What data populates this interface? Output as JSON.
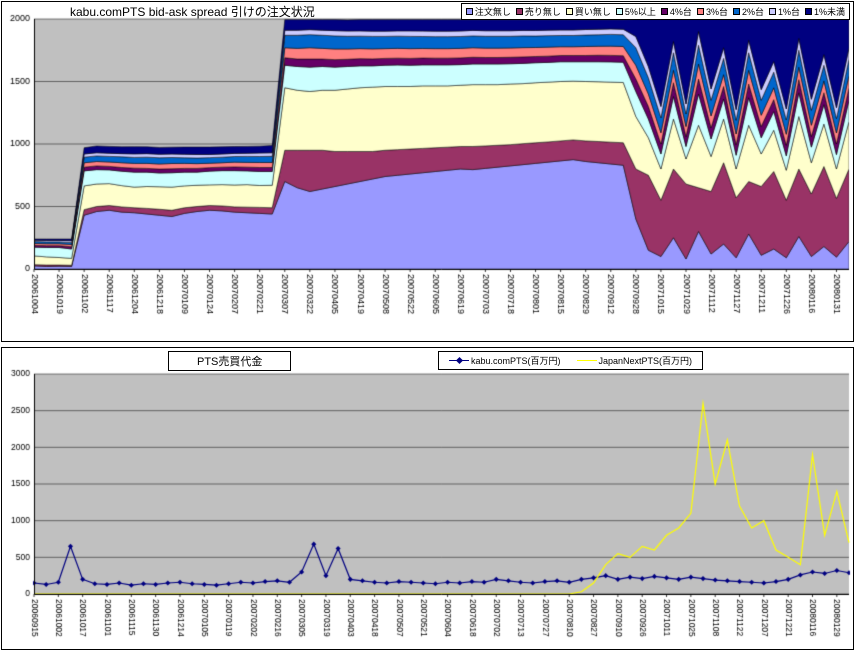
{
  "chart_data": [
    {
      "type": "area",
      "stacked": true,
      "title": "kabu.comPTS bid-ask spread 引けの注文状況",
      "ylim": [
        0,
        2000
      ],
      "yticks": [
        0,
        500,
        1000,
        1500,
        2000
      ],
      "plot_bg": "#C0C0C0",
      "grid": "horizontal",
      "legend_position": "top-right",
      "points_per_tick": 2,
      "x_tick_labels": [
        "20061004",
        "20061019",
        "20061102",
        "20061117",
        "20061204",
        "20061218",
        "20070109",
        "20070124",
        "20070207",
        "20070221",
        "20070307",
        "20070322",
        "20070405",
        "20070419",
        "20070508",
        "20070522",
        "20070605",
        "20070619",
        "20070703",
        "20070718",
        "20070801",
        "20070815",
        "20070829",
        "20070912",
        "20070928",
        "20071015",
        "20071029",
        "20071112",
        "20071127",
        "20071211",
        "20071226",
        "20080116",
        "20080131"
      ],
      "series": [
        {
          "name": "注文無し",
          "color": "#9999FF",
          "values": [
            25,
            20,
            22,
            20,
            430,
            460,
            470,
            455,
            450,
            440,
            430,
            420,
            445,
            460,
            470,
            465,
            455,
            450,
            445,
            440,
            700,
            650,
            620,
            640,
            660,
            680,
            700,
            720,
            740,
            750,
            760,
            770,
            780,
            790,
            800,
            795,
            805,
            815,
            825,
            835,
            845,
            855,
            865,
            875,
            860,
            850,
            840,
            830,
            400,
            150,
            100,
            250,
            80,
            300,
            120,
            200,
            90,
            280,
            110,
            160,
            90,
            260,
            100,
            180,
            95,
            220
          ]
        },
        {
          "name": "売り無し",
          "color": "#993366",
          "values": [
            10,
            12,
            10,
            10,
            45,
            40,
            38,
            42,
            40,
            45,
            48,
            50,
            45,
            40,
            38,
            40,
            42,
            45,
            48,
            50,
            250,
            300,
            330,
            310,
            280,
            260,
            240,
            220,
            210,
            205,
            200,
            195,
            190,
            185,
            180,
            185,
            180,
            175,
            170,
            168,
            165,
            162,
            160,
            158,
            165,
            170,
            175,
            180,
            400,
            600,
            450,
            550,
            600,
            350,
            500,
            650,
            480,
            420,
            550,
            620,
            460,
            540,
            500,
            640,
            470,
            580
          ]
        },
        {
          "name": "買い無し",
          "color": "#FFFFCC",
          "values": [
            70,
            65,
            60,
            55,
            190,
            180,
            175,
            170,
            165,
            175,
            180,
            185,
            175,
            170,
            165,
            170,
            175,
            180,
            175,
            180,
            500,
            480,
            470,
            480,
            490,
            500,
            510,
            515,
            510,
            505,
            500,
            500,
            495,
            490,
            490,
            495,
            490,
            485,
            485,
            480,
            480,
            478,
            475,
            470,
            475,
            478,
            480,
            482,
            420,
            300,
            250,
            400,
            200,
            500,
            280,
            350,
            230,
            450,
            260,
            330,
            240,
            420,
            250,
            340,
            235,
            380
          ]
        },
        {
          "name": "5%以上",
          "color": "#CCFFFF",
          "values": [
            70,
            75,
            80,
            75,
            120,
            115,
            110,
            115,
            120,
            115,
            110,
            115,
            110,
            105,
            110,
            112,
            115,
            110,
            112,
            110,
            180,
            190,
            195,
            190,
            185,
            180,
            175,
            170,
            170,
            172,
            170,
            168,
            168,
            168,
            165,
            165,
            165,
            165,
            162,
            162,
            160,
            158,
            158,
            155,
            158,
            160,
            162,
            162,
            200,
            150,
            120,
            180,
            100,
            250,
            140,
            160,
            110,
            220,
            130,
            150,
            115,
            190,
            125,
            155,
            115,
            170
          ]
        },
        {
          "name": "4%台",
          "color": "#660066",
          "values": [
            15,
            15,
            15,
            18,
            30,
            30,
            28,
            30,
            32,
            30,
            32,
            32,
            30,
            30,
            28,
            28,
            30,
            30,
            32,
            32,
            60,
            60,
            65,
            60,
            60,
            58,
            58,
            56,
            55,
            55,
            55,
            55,
            54,
            54,
            54,
            54,
            52,
            52,
            52,
            52,
            50,
            50,
            50,
            50,
            50,
            52,
            52,
            52,
            100,
            100,
            80,
            110,
            80,
            120,
            90,
            100,
            85,
            110,
            90,
            95,
            85,
            105,
            85,
            95,
            85,
            100
          ]
        },
        {
          "name": "3%台",
          "color": "#FF8080",
          "values": [
            15,
            15,
            15,
            18,
            35,
            35,
            35,
            38,
            38,
            40,
            40,
            42,
            40,
            38,
            35,
            35,
            38,
            38,
            40,
            40,
            80,
            85,
            90,
            85,
            85,
            82,
            80,
            80,
            78,
            78,
            78,
            76,
            76,
            76,
            76,
            76,
            75,
            75,
            74,
            74,
            72,
            72,
            70,
            70,
            72,
            72,
            74,
            74,
            110,
            100,
            90,
            100,
            80,
            120,
            95,
            95,
            85,
            110,
            90,
            95,
            88,
            100,
            90,
            95,
            88,
            100
          ]
        },
        {
          "name": "2%台",
          "color": "#0066CC",
          "values": [
            15,
            15,
            15,
            15,
            45,
            45,
            45,
            48,
            48,
            50,
            50,
            48,
            45,
            45,
            45,
            45,
            45,
            48,
            48,
            50,
            100,
            105,
            105,
            105,
            105,
            102,
            100,
            100,
            98,
            98,
            98,
            96,
            96,
            96,
            95,
            95,
            95,
            95,
            94,
            94,
            92,
            92,
            90,
            90,
            92,
            92,
            94,
            94,
            140,
            130,
            120,
            140,
            100,
            150,
            125,
            130,
            110,
            140,
            120,
            125,
            115,
            135,
            120,
            125,
            115,
            130
          ]
        },
        {
          "name": "1%台",
          "color": "#CCCCFF",
          "values": [
            10,
            12,
            12,
            15,
            25,
            25,
            25,
            25,
            28,
            28,
            28,
            28,
            28,
            28,
            25,
            25,
            25,
            25,
            28,
            28,
            40,
            40,
            40,
            40,
            42,
            42,
            42,
            42,
            42,
            42,
            44,
            44,
            44,
            44,
            44,
            44,
            44,
            44,
            44,
            44,
            44,
            44,
            44,
            44,
            44,
            44,
            44,
            44,
            90,
            90,
            90,
            90,
            80,
            110,
            90,
            85,
            85,
            100,
            85,
            85,
            87,
            95,
            88,
            85,
            87,
            90
          ]
        },
        {
          "name": "1%未満",
          "color": "#000080",
          "values": [
            10,
            11,
            11,
            14,
            50,
            55,
            55,
            55,
            58,
            55,
            55,
            55,
            58,
            60,
            60,
            58,
            55,
            55,
            55,
            58,
            85,
            85,
            80,
            85,
            88,
            88,
            90,
            92,
            92,
            90,
            90,
            91,
            92,
            92,
            91,
            86,
            89,
            89,
            89,
            86,
            87,
            84,
            83,
            83,
            79,
            77,
            74,
            77,
            140,
            380,
            700,
            180,
            680,
            100,
            560,
            230,
            725,
            170,
            565,
            340,
            720,
            155,
            642,
            285,
            710,
            230
          ]
        }
      ]
    },
    {
      "type": "line",
      "title": "PTS売買代金",
      "ylim": [
        0,
        3000
      ],
      "yticks": [
        0,
        500,
        1000,
        1500,
        2000,
        2500,
        3000
      ],
      "plot_bg": "#C0C0C0",
      "grid": "horizontal",
      "legend_position": "top-right",
      "points_per_tick": 2,
      "x_tick_labels": [
        "20060915",
        "20061002",
        "20061017",
        "20061101",
        "20061115",
        "20061130",
        "20061214",
        "20070105",
        "20070119",
        "20070202",
        "20070216",
        "20070305",
        "20070319",
        "20070403",
        "20070418",
        "20070507",
        "20070521",
        "20070604",
        "20070618",
        "20070702",
        "20070713",
        "20070727",
        "20070810",
        "20070827",
        "20070910",
        "20070926",
        "20071011",
        "20071025",
        "20071108",
        "20071122",
        "20071207",
        "20071221",
        "20080116",
        "20080129"
      ],
      "series": [
        {
          "name": "kabu.comPTS(百万円)",
          "color": "#000080",
          "marker": "diamond",
          "values": [
            150,
            130,
            160,
            650,
            200,
            140,
            130,
            150,
            120,
            140,
            130,
            150,
            160,
            140,
            130,
            120,
            140,
            160,
            150,
            170,
            180,
            160,
            300,
            680,
            250,
            620,
            200,
            180,
            160,
            150,
            170,
            160,
            150,
            140,
            160,
            150,
            170,
            160,
            200,
            180,
            160,
            150,
            170,
            180,
            160,
            200,
            220,
            250,
            200,
            230,
            210,
            240,
            220,
            200,
            230,
            210,
            190,
            180,
            170,
            160,
            150,
            170,
            200,
            260,
            300,
            280,
            320,
            290
          ]
        },
        {
          "name": "JapanNextPTS(百万円)",
          "color": "#FFFF00",
          "marker": "none",
          "values": [
            0,
            0,
            0,
            0,
            0,
            0,
            0,
            0,
            0,
            0,
            0,
            0,
            0,
            0,
            0,
            0,
            0,
            0,
            0,
            0,
            0,
            0,
            0,
            0,
            0,
            0,
            0,
            0,
            0,
            0,
            0,
            0,
            0,
            0,
            0,
            0,
            0,
            0,
            0,
            0,
            0,
            0,
            0,
            0,
            0,
            30,
            150,
            400,
            550,
            500,
            650,
            600,
            800,
            900,
            1100,
            2600,
            1500,
            2100,
            1200,
            900,
            1000,
            600,
            500,
            400,
            1900,
            800,
            1400,
            700
          ]
        }
      ]
    }
  ]
}
